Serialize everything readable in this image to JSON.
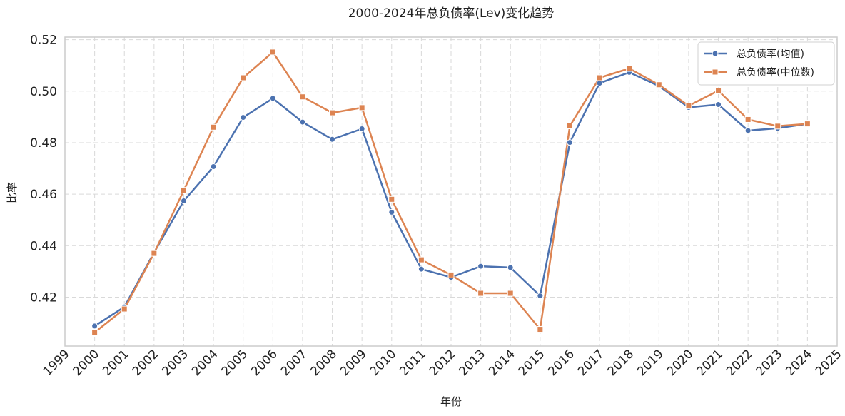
{
  "chart_data": {
    "type": "line",
    "title": "2000-2024年总负债率(Lev)变化趋势",
    "xlabel": "年份",
    "ylabel": "比率",
    "x": [
      2000,
      2001,
      2002,
      2003,
      2004,
      2005,
      2006,
      2007,
      2008,
      2009,
      2010,
      2011,
      2012,
      2013,
      2014,
      2015,
      2016,
      2017,
      2018,
      2019,
      2020,
      2021,
      2022,
      2023,
      2024
    ],
    "xlim": [
      1999,
      2025
    ],
    "xticks": [
      "1999",
      "2000",
      "2001",
      "2002",
      "2003",
      "2004",
      "2005",
      "2006",
      "2007",
      "2008",
      "2009",
      "2010",
      "2011",
      "2012",
      "2013",
      "2014",
      "2015",
      "2016",
      "2017",
      "2018",
      "2019",
      "2020",
      "2021",
      "2022",
      "2023",
      "2024",
      "2025"
    ],
    "ylim": [
      0.401,
      0.521
    ],
    "yticks": [
      "0.42",
      "0.44",
      "0.46",
      "0.48",
      "0.50",
      "0.52"
    ],
    "grid": true,
    "legend_position": "top-right",
    "series": [
      {
        "name": "总负债率(均值)",
        "color": "#4c72b0",
        "marker": "circle",
        "values": [
          0.4088,
          0.4162,
          0.4373,
          0.4574,
          0.4707,
          0.4898,
          0.4972,
          0.488,
          0.4813,
          0.4854,
          0.453,
          0.4309,
          0.4277,
          0.432,
          0.4315,
          0.4205,
          0.4801,
          0.5031,
          0.5073,
          0.502,
          0.4937,
          0.4948,
          0.4847,
          0.4856,
          0.4873
        ]
      },
      {
        "name": "总负债率(中位数)",
        "color": "#dd8452",
        "marker": "square",
        "values": [
          0.4063,
          0.4154,
          0.437,
          0.4615,
          0.486,
          0.5052,
          0.5152,
          0.4978,
          0.4916,
          0.4936,
          0.458,
          0.4345,
          0.4286,
          0.4215,
          0.4215,
          0.4075,
          0.4865,
          0.5052,
          0.5088,
          0.5025,
          0.4943,
          0.5002,
          0.489,
          0.4864,
          0.4873
        ]
      }
    ]
  }
}
